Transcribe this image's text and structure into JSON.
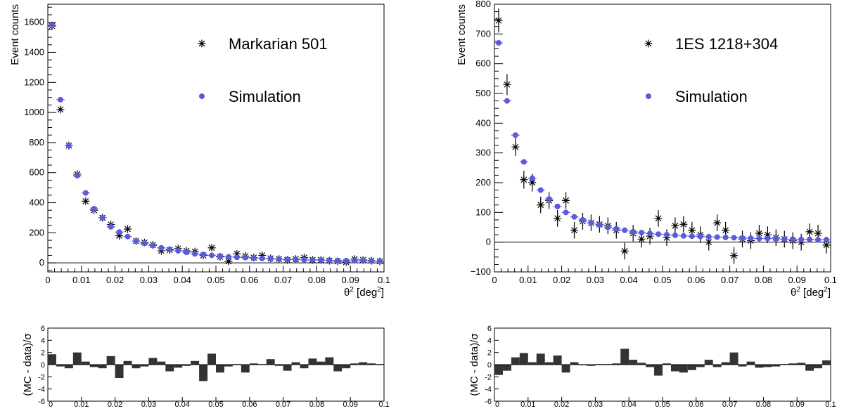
{
  "chart_data": [
    {
      "type": "scatter",
      "xlabel": "θ² [deg²]",
      "ylabel": "Event counts",
      "xlim": [
        0,
        0.1
      ],
      "ylim": [
        -60,
        1720
      ],
      "xticks": [
        "0",
        "0.01",
        "0.02",
        "0.03",
        "0.04",
        "0.05",
        "0.06",
        "0.07",
        "0.08",
        "0.09",
        "0.1"
      ],
      "yticks": [
        0,
        200,
        400,
        600,
        800,
        1000,
        1200,
        1400,
        1600
      ],
      "legend_position": "top-right",
      "grid": false,
      "series": [
        {
          "name": "Markarian 501",
          "marker": "asterisk",
          "color": "#000000",
          "x": [
            0.00125,
            0.00375,
            0.00625,
            0.00875,
            0.01125,
            0.01375,
            0.01625,
            0.01875,
            0.02125,
            0.02375,
            0.02625,
            0.02875,
            0.03125,
            0.03375,
            0.03625,
            0.03875,
            0.04125,
            0.04375,
            0.04625,
            0.04875,
            0.05125,
            0.05375,
            0.05625,
            0.05875,
            0.06125,
            0.06375,
            0.06625,
            0.06875,
            0.07125,
            0.07375,
            0.07625,
            0.07875,
            0.08125,
            0.08375,
            0.08625,
            0.08875,
            0.09125,
            0.09375,
            0.09625,
            0.09875
          ],
          "y": [
            1575,
            1020,
            780,
            590,
            410,
            350,
            300,
            255,
            180,
            225,
            145,
            135,
            120,
            80,
            85,
            95,
            80,
            75,
            50,
            100,
            40,
            10,
            60,
            45,
            35,
            50,
            30,
            25,
            20,
            25,
            35,
            20,
            20,
            15,
            10,
            5,
            25,
            20,
            15,
            10
          ]
        },
        {
          "name": "Simulation",
          "marker": "dot",
          "color": "#5a5adc",
          "x": [
            0.00125,
            0.00375,
            0.00625,
            0.00875,
            0.01125,
            0.01375,
            0.01625,
            0.01875,
            0.02125,
            0.02375,
            0.02625,
            0.02875,
            0.03125,
            0.03375,
            0.03625,
            0.03875,
            0.04125,
            0.04375,
            0.04625,
            0.04875,
            0.05125,
            0.05375,
            0.05625,
            0.05875,
            0.06125,
            0.06375,
            0.06625,
            0.06875,
            0.07125,
            0.07375,
            0.07625,
            0.07875,
            0.08125,
            0.08375,
            0.08625,
            0.08875,
            0.09125,
            0.09375,
            0.09625,
            0.09875
          ],
          "y": [
            1580,
            1085,
            780,
            580,
            465,
            360,
            300,
            240,
            205,
            175,
            145,
            130,
            115,
            100,
            90,
            80,
            70,
            60,
            55,
            50,
            45,
            40,
            37,
            35,
            32,
            30,
            28,
            26,
            24,
            22,
            20,
            19,
            18,
            17,
            16,
            15,
            14,
            13,
            12,
            11
          ]
        }
      ]
    },
    {
      "type": "bar",
      "xlabel": "",
      "ylabel": "(MC - data)/σ",
      "xlim": [
        0,
        0.1
      ],
      "ylim": [
        -6,
        6
      ],
      "xticks": [
        "0",
        "0.01",
        "0.02",
        "0.03",
        "0.04",
        "0.05",
        "0.06",
        "0.07",
        "0.08",
        "0.09",
        "0.1"
      ],
      "yticks": [
        "-6",
        "-4",
        "-2",
        "0",
        "2",
        "4",
        "6"
      ],
      "x": [
        0.00125,
        0.00375,
        0.00625,
        0.00875,
        0.01125,
        0.01375,
        0.01625,
        0.01875,
        0.02125,
        0.02375,
        0.02625,
        0.02875,
        0.03125,
        0.03375,
        0.03625,
        0.03875,
        0.04125,
        0.04375,
        0.04625,
        0.04875,
        0.05125,
        0.05375,
        0.05625,
        0.05875,
        0.06125,
        0.06375,
        0.06625,
        0.06875,
        0.07125,
        0.07375,
        0.07625,
        0.07875,
        0.08125,
        0.08375,
        0.08625,
        0.08875,
        0.09125,
        0.09375,
        0.09625,
        0.09875
      ],
      "values": [
        1.7,
        -0.3,
        -0.6,
        2.0,
        0.5,
        -0.4,
        -0.6,
        1.4,
        -2.2,
        0.6,
        -0.6,
        -0.3,
        1.1,
        0.5,
        -1.1,
        -0.5,
        -0.2,
        0.6,
        -2.7,
        1.8,
        -1.3,
        -0.3,
        0.1,
        -1.3,
        0.2,
        0.1,
        0.9,
        -0.2,
        -1.0,
        0.4,
        -0.6,
        1.0,
        0.5,
        1.2,
        -1.1,
        -0.6,
        0.2,
        0.4,
        0.2,
        0.1
      ]
    },
    {
      "type": "scatter",
      "xlabel": "θ² [deg²]",
      "ylabel": "Event counts",
      "xlim": [
        0,
        0.1
      ],
      "ylim": [
        -100,
        800
      ],
      "xticks": [
        "0",
        "0.01",
        "0.02",
        "0.03",
        "0.04",
        "0.05",
        "0.06",
        "0.07",
        "0.08",
        "0.09",
        "0.1"
      ],
      "yticks": [
        "−100",
        "0",
        "100",
        "200",
        "300",
        "400",
        "500",
        "600",
        "700",
        "800"
      ],
      "legend_position": "top-right",
      "grid": false,
      "series": [
        {
          "name": "1ES 1218+304",
          "marker": "asterisk",
          "color": "#000000",
          "x": [
            0.00125,
            0.00375,
            0.00625,
            0.00875,
            0.01125,
            0.01375,
            0.01625,
            0.01875,
            0.02125,
            0.02375,
            0.02625,
            0.02875,
            0.03125,
            0.03375,
            0.03625,
            0.03875,
            0.04125,
            0.04375,
            0.04625,
            0.04875,
            0.05125,
            0.05375,
            0.05625,
            0.05875,
            0.06125,
            0.06375,
            0.06625,
            0.06875,
            0.07125,
            0.07375,
            0.07625,
            0.07875,
            0.08125,
            0.08375,
            0.08625,
            0.08875,
            0.09125,
            0.09375,
            0.09625,
            0.09875
          ],
          "y": [
            745,
            530,
            320,
            210,
            200,
            125,
            140,
            80,
            140,
            40,
            70,
            65,
            60,
            55,
            40,
            -30,
            30,
            10,
            20,
            80,
            15,
            55,
            60,
            40,
            25,
            0,
            65,
            40,
            -45,
            10,
            5,
            30,
            25,
            15,
            10,
            5,
            0,
            35,
            30,
            -10
          ],
          "err": [
            40,
            35,
            30,
            30,
            30,
            28,
            28,
            28,
            28,
            28,
            28,
            28,
            28,
            28,
            28,
            28,
            28,
            28,
            28,
            28,
            28,
            28,
            28,
            28,
            28,
            28,
            28,
            28,
            28,
            28,
            28,
            28,
            28,
            28,
            28,
            28,
            28,
            28,
            28,
            28
          ]
        },
        {
          "name": "Simulation",
          "marker": "dot",
          "color": "#5a5adc",
          "x": [
            0.00125,
            0.00375,
            0.00625,
            0.00875,
            0.01125,
            0.01375,
            0.01625,
            0.01875,
            0.02125,
            0.02375,
            0.02625,
            0.02875,
            0.03125,
            0.03375,
            0.03625,
            0.03875,
            0.04125,
            0.04375,
            0.04625,
            0.04875,
            0.05125,
            0.05375,
            0.05625,
            0.05875,
            0.06125,
            0.06375,
            0.06625,
            0.06875,
            0.07125,
            0.07375,
            0.07625,
            0.07875,
            0.08125,
            0.08375,
            0.08625,
            0.08875,
            0.09125,
            0.09375,
            0.09625,
            0.09875
          ],
          "y": [
            670,
            475,
            360,
            270,
            215,
            175,
            145,
            120,
            100,
            85,
            75,
            65,
            58,
            50,
            45,
            40,
            35,
            32,
            29,
            27,
            25,
            23,
            21,
            20,
            19,
            18,
            17,
            16,
            15,
            14,
            13,
            12,
            12,
            11,
            10,
            10,
            9,
            9,
            8,
            8
          ]
        }
      ]
    },
    {
      "type": "bar",
      "xlabel": "",
      "ylabel": "(MC - data)/σ",
      "xlim": [
        0,
        0.1
      ],
      "ylim": [
        -6,
        6
      ],
      "xticks": [
        "0",
        "0.01",
        "0.02",
        "0.03",
        "0.04",
        "0.05",
        "0.06",
        "0.07",
        "0.08",
        "0.09",
        "0.1"
      ],
      "yticks": [
        "-6",
        "-4",
        "-2",
        "0",
        "2",
        "4",
        "6"
      ],
      "x": [
        0.00125,
        0.00375,
        0.00625,
        0.00875,
        0.01125,
        0.01375,
        0.01625,
        0.01875,
        0.02125,
        0.02375,
        0.02625,
        0.02875,
        0.03125,
        0.03375,
        0.03625,
        0.03875,
        0.04125,
        0.04375,
        0.04625,
        0.04875,
        0.05125,
        0.05375,
        0.05625,
        0.05875,
        0.06125,
        0.06375,
        0.06625,
        0.06875,
        0.07125,
        0.07375,
        0.07625,
        0.07875,
        0.08125,
        0.08375,
        0.08625,
        0.08875,
        0.09125,
        0.09375,
        0.09625,
        0.09875
      ],
      "values": [
        -1.7,
        -1.0,
        1.2,
        1.9,
        0.4,
        1.8,
        0.4,
        1.5,
        -1.3,
        0.4,
        -0.1,
        -0.2,
        0.1,
        0.1,
        0.2,
        2.6,
        0.8,
        0.3,
        -0.4,
        -1.8,
        0.2,
        -1.1,
        -1.3,
        -0.9,
        -0.4,
        0.8,
        -0.4,
        0.4,
        2.0,
        -0.3,
        0.5,
        -0.5,
        -0.4,
        -0.3,
        0.1,
        0.2,
        0.3,
        -1.0,
        -0.6,
        0.7
      ]
    }
  ]
}
